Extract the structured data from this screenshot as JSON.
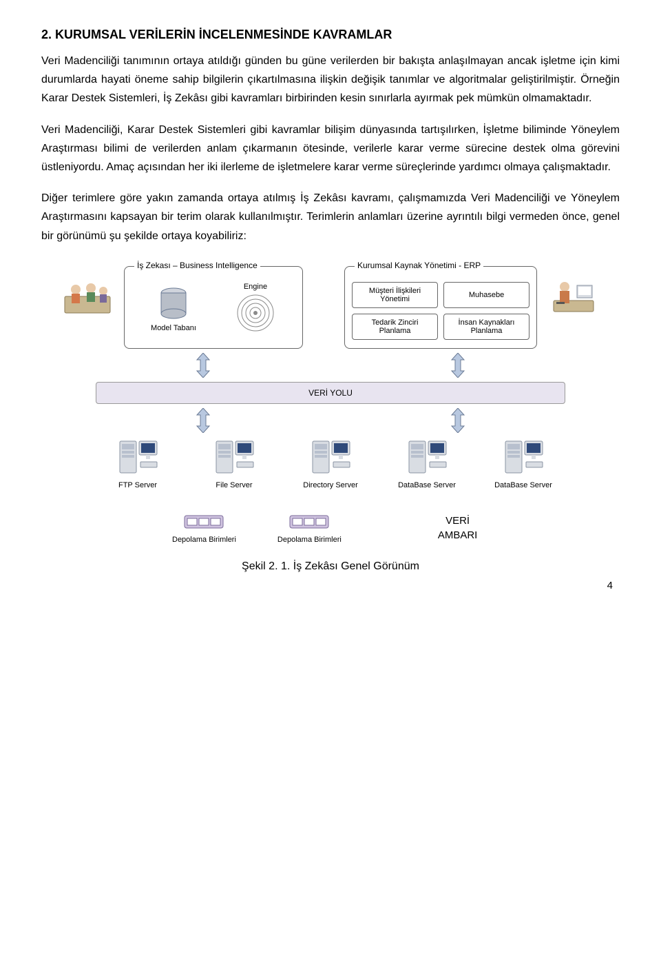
{
  "title": "2. KURUMSAL VERİLERİN İNCELENMESİNDE KAVRAMLAR",
  "paragraphs": [
    "Veri Madenciliği tanımının ortaya atıldığı günden bu güne verilerden bir bakışta anlaşılmayan ancak işletme için kimi durumlarda hayati öneme sahip bilgilerin çıkartılmasına ilişkin değişik tanımlar ve algoritmalar geliştirilmiştir. Örneğin Karar Destek Sistemleri, İş Zekâsı gibi kavramları birbirinden kesin sınırlarla ayırmak pek mümkün olmamaktadır.",
    "Veri Madenciliği, Karar Destek Sistemleri gibi kavramlar bilişim dünyasında tartışılırken, İşletme biliminde Yöneylem Araştırması bilimi de verilerden anlam çıkarmanın ötesinde, verilerle karar verme sürecine destek olma görevini üstleniyordu. Amaç açısından her iki ilerleme de işletmelere karar verme süreçlerinde yardımcı olmaya çalışmaktadır.",
    "Diğer terimlere göre yakın zamanda ortaya atılmış İş Zekâsı kavramı, çalışmamızda Veri Madenciliği ve Yöneylem Araştırmasını kapsayan bir terim olarak kullanılmıştır. Terimlerin anlamları üzerine ayrıntılı bilgi vermeden önce, genel bir görünümü şu şekilde ortaya koyabiliriz:"
  ],
  "diagram": {
    "bi_box": {
      "legend": "İş Zekası – Business Intelligence",
      "model_tabani": "Model Tabanı",
      "engine": "Engine"
    },
    "erp_box": {
      "legend": "Kurumsal Kaynak Yönetimi - ERP",
      "items": [
        "Müşteri İlişkileri Yönetimi",
        "Muhasebe",
        "Tedarik Zinciri Planlama",
        "İnsan Kaynakları Planlama"
      ]
    },
    "veri_yolu": "VERİ YOLU",
    "veri_yolu_fill": "#e8e4f0",
    "servers": [
      "FTP Server",
      "File Server",
      "Directory Server",
      "DataBase Server",
      "DataBase Server"
    ],
    "server_colors": {
      "case": "#d9dde3",
      "case_stroke": "#8a94a3",
      "panel": "#b8c0ce",
      "monitor_frame": "#d9dde3",
      "monitor_screen": "#2f4a7a"
    },
    "storage_label": "Depolama Birimleri",
    "storage_fill": "#d0c4e0",
    "storage_stroke": "#7a6a9a",
    "veri_ambari": "VERİ AMBARI",
    "caption": "Şekil 2. 1. İş Zekâsı Genel Görünüm",
    "page_number": "4",
    "arrow_fill": "#b8c8e0",
    "arrow_stroke": "#6a7a94",
    "engine_stroke": "#8a8a8a",
    "cyl_top": "#d0d4dc",
    "cyl_side": "#b8bec8"
  }
}
